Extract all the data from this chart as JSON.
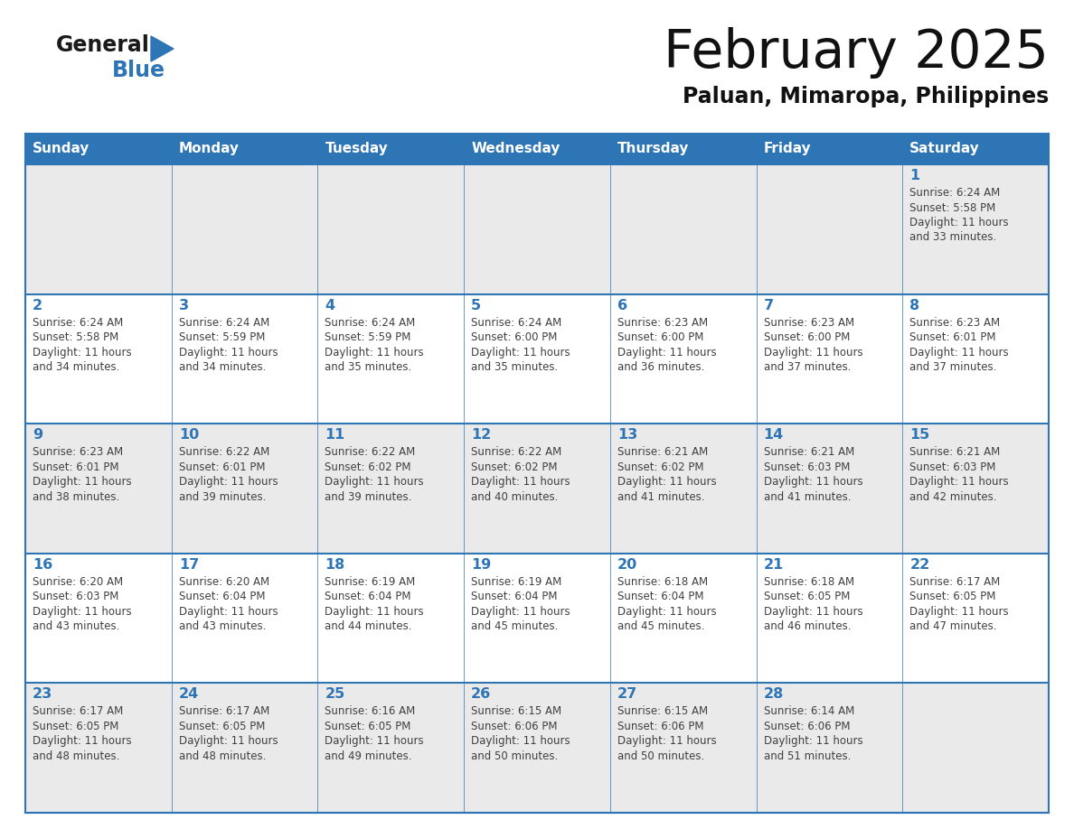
{
  "title": "February 2025",
  "subtitle": "Paluan, Mimaropa, Philippines",
  "header_color": "#2e75b6",
  "header_text_color": "#ffffff",
  "day_names": [
    "Sunday",
    "Monday",
    "Tuesday",
    "Wednesday",
    "Thursday",
    "Friday",
    "Saturday"
  ],
  "bg_color": "#ffffff",
  "cell_bg_row0": "#eaeaea",
  "cell_bg_row1": "#ffffff",
  "border_color": "#2e75b6",
  "day_num_color": "#2e75b6",
  "text_color": "#404040",
  "logo_black": "#1a1a1a",
  "logo_blue": "#2e75b6",
  "calendar": [
    [
      {
        "day": 0,
        "sunrise": "",
        "sunset": "",
        "daylight": ""
      },
      {
        "day": 0,
        "sunrise": "",
        "sunset": "",
        "daylight": ""
      },
      {
        "day": 0,
        "sunrise": "",
        "sunset": "",
        "daylight": ""
      },
      {
        "day": 0,
        "sunrise": "",
        "sunset": "",
        "daylight": ""
      },
      {
        "day": 0,
        "sunrise": "",
        "sunset": "",
        "daylight": ""
      },
      {
        "day": 0,
        "sunrise": "",
        "sunset": "",
        "daylight": ""
      },
      {
        "day": 1,
        "sunrise": "6:24 AM",
        "sunset": "5:58 PM",
        "daylight": "11 hours and 33 minutes."
      }
    ],
    [
      {
        "day": 2,
        "sunrise": "6:24 AM",
        "sunset": "5:58 PM",
        "daylight": "11 hours and 34 minutes."
      },
      {
        "day": 3,
        "sunrise": "6:24 AM",
        "sunset": "5:59 PM",
        "daylight": "11 hours and 34 minutes."
      },
      {
        "day": 4,
        "sunrise": "6:24 AM",
        "sunset": "5:59 PM",
        "daylight": "11 hours and 35 minutes."
      },
      {
        "day": 5,
        "sunrise": "6:24 AM",
        "sunset": "6:00 PM",
        "daylight": "11 hours and 35 minutes."
      },
      {
        "day": 6,
        "sunrise": "6:23 AM",
        "sunset": "6:00 PM",
        "daylight": "11 hours and 36 minutes."
      },
      {
        "day": 7,
        "sunrise": "6:23 AM",
        "sunset": "6:00 PM",
        "daylight": "11 hours and 37 minutes."
      },
      {
        "day": 8,
        "sunrise": "6:23 AM",
        "sunset": "6:01 PM",
        "daylight": "11 hours and 37 minutes."
      }
    ],
    [
      {
        "day": 9,
        "sunrise": "6:23 AM",
        "sunset": "6:01 PM",
        "daylight": "11 hours and 38 minutes."
      },
      {
        "day": 10,
        "sunrise": "6:22 AM",
        "sunset": "6:01 PM",
        "daylight": "11 hours and 39 minutes."
      },
      {
        "day": 11,
        "sunrise": "6:22 AM",
        "sunset": "6:02 PM",
        "daylight": "11 hours and 39 minutes."
      },
      {
        "day": 12,
        "sunrise": "6:22 AM",
        "sunset": "6:02 PM",
        "daylight": "11 hours and 40 minutes."
      },
      {
        "day": 13,
        "sunrise": "6:21 AM",
        "sunset": "6:02 PM",
        "daylight": "11 hours and 41 minutes."
      },
      {
        "day": 14,
        "sunrise": "6:21 AM",
        "sunset": "6:03 PM",
        "daylight": "11 hours and 41 minutes."
      },
      {
        "day": 15,
        "sunrise": "6:21 AM",
        "sunset": "6:03 PM",
        "daylight": "11 hours and 42 minutes."
      }
    ],
    [
      {
        "day": 16,
        "sunrise": "6:20 AM",
        "sunset": "6:03 PM",
        "daylight": "11 hours and 43 minutes."
      },
      {
        "day": 17,
        "sunrise": "6:20 AM",
        "sunset": "6:04 PM",
        "daylight": "11 hours and 43 minutes."
      },
      {
        "day": 18,
        "sunrise": "6:19 AM",
        "sunset": "6:04 PM",
        "daylight": "11 hours and 44 minutes."
      },
      {
        "day": 19,
        "sunrise": "6:19 AM",
        "sunset": "6:04 PM",
        "daylight": "11 hours and 45 minutes."
      },
      {
        "day": 20,
        "sunrise": "6:18 AM",
        "sunset": "6:04 PM",
        "daylight": "11 hours and 45 minutes."
      },
      {
        "day": 21,
        "sunrise": "6:18 AM",
        "sunset": "6:05 PM",
        "daylight": "11 hours and 46 minutes."
      },
      {
        "day": 22,
        "sunrise": "6:17 AM",
        "sunset": "6:05 PM",
        "daylight": "11 hours and 47 minutes."
      }
    ],
    [
      {
        "day": 23,
        "sunrise": "6:17 AM",
        "sunset": "6:05 PM",
        "daylight": "11 hours and 48 minutes."
      },
      {
        "day": 24,
        "sunrise": "6:17 AM",
        "sunset": "6:05 PM",
        "daylight": "11 hours and 48 minutes."
      },
      {
        "day": 25,
        "sunrise": "6:16 AM",
        "sunset": "6:05 PM",
        "daylight": "11 hours and 49 minutes."
      },
      {
        "day": 26,
        "sunrise": "6:15 AM",
        "sunset": "6:06 PM",
        "daylight": "11 hours and 50 minutes."
      },
      {
        "day": 27,
        "sunrise": "6:15 AM",
        "sunset": "6:06 PM",
        "daylight": "11 hours and 50 minutes."
      },
      {
        "day": 28,
        "sunrise": "6:14 AM",
        "sunset": "6:06 PM",
        "daylight": "11 hours and 51 minutes."
      },
      {
        "day": 0,
        "sunrise": "",
        "sunset": "",
        "daylight": ""
      }
    ]
  ]
}
